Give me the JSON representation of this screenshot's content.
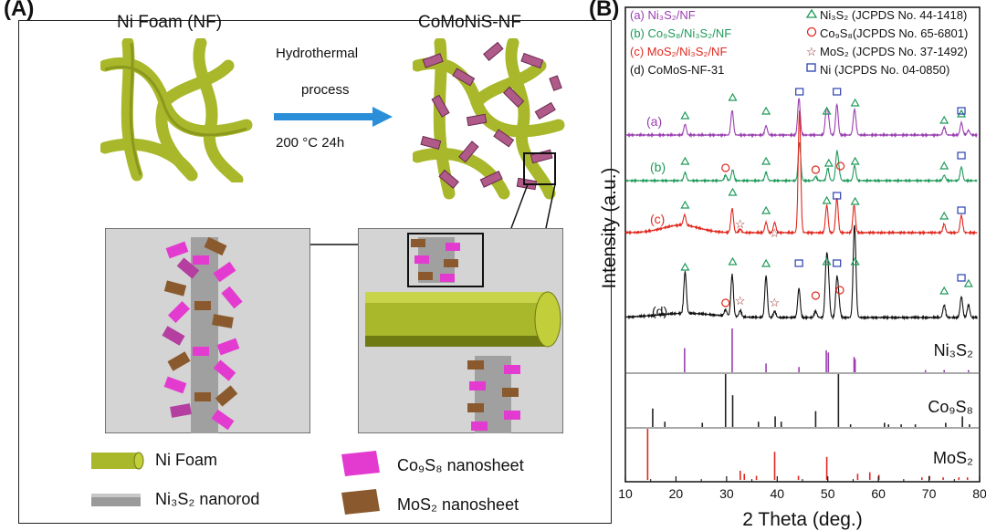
{
  "panelA": {
    "letter": "(A)",
    "left_title": "Ni Foam (NF)",
    "right_title": "CoMoNiS-NF",
    "arrow_line1": "Hydrothermal",
    "arrow_line2": "process",
    "arrow_line3": "200 °C  24h",
    "legend": {
      "ni_foam": "Ni Foam",
      "ni3s2": "Ni₃S₂ nanorod",
      "co9s8": "Co₉S₈ nanosheet",
      "mos2": "MoS₂ nanosheet"
    },
    "colors": {
      "foam": "#a8b82a",
      "co9s8": "#e33bd0",
      "mos2": "#8a5a2e",
      "ni3s2": "#9a9a9a",
      "arrow": "#2a8fd8"
    }
  },
  "panelB": {
    "letter": "(B)",
    "legend_left": [
      "(a) Ni₃S₂/NF",
      "(b) Co₉S₈/Ni₃S₂/NF",
      "(c) MoS₂/Ni₃S₂/NF",
      "(d) CoMoS-NF-31"
    ],
    "legend_right": [
      "Ni₃S₂ (JCPDS No. 44-1418)",
      "Co₉S₈(JCPDS No. 65-6801)",
      "MoS₂ (JCPDS No. 37-1492)",
      "Ni (JCPDS No. 04-0850)"
    ],
    "curve_labels": [
      "(a)",
      "(b)",
      "(c)",
      "(d)"
    ],
    "ref_labels": [
      "Ni₃S₂",
      "Co₉S₈",
      "MoS₂"
    ],
    "series_colors": {
      "a": "#9a3fb0",
      "b": "#1f9a5a",
      "c": "#e0281e",
      "d": "#111111"
    }
  },
  "chart_data": {
    "type": "line",
    "xlabel": "2 Theta (deg.)",
    "ylabel": "Intensity (a.u.)",
    "xlim": [
      10,
      80
    ],
    "xticks": [
      10,
      20,
      30,
      40,
      50,
      60,
      70,
      80
    ],
    "series": [
      {
        "name": "(a) Ni3S2/NF",
        "peaks": [
          [
            21.8,
            0.35
          ],
          [
            31.1,
            0.8
          ],
          [
            37.8,
            0.3
          ],
          [
            44.3,
            1.2
          ],
          [
            49.7,
            0.7
          ],
          [
            50.1,
            0.5
          ],
          [
            51.8,
            1.0
          ],
          [
            55.2,
            0.5
          ],
          [
            55.4,
            0.4
          ],
          [
            73.0,
            0.25
          ],
          [
            76.4,
            0.4
          ],
          [
            77.8,
            0.15
          ]
        ]
      },
      {
        "name": "(b) Co9S8/Ni3S2/NF",
        "peaks": [
          [
            21.8,
            0.3
          ],
          [
            29.8,
            0.2
          ],
          [
            31.2,
            0.4
          ],
          [
            37.8,
            0.3
          ],
          [
            44.4,
            1.4
          ],
          [
            47.6,
            0.15
          ],
          [
            50.0,
            0.45
          ],
          [
            51.8,
            1.0
          ],
          [
            52.2,
            0.3
          ],
          [
            55.3,
            0.55
          ],
          [
            73.0,
            0.2
          ],
          [
            76.4,
            0.5
          ]
        ]
      },
      {
        "name": "(c) MoS2/Ni3S2/NF",
        "peaks": [
          [
            21.7,
            0.3
          ],
          [
            31.1,
            0.7
          ],
          [
            32.7,
            0.1
          ],
          [
            37.8,
            0.3
          ],
          [
            39.5,
            0.3
          ],
          [
            44.4,
            3.5
          ],
          [
            49.8,
            0.8
          ],
          [
            51.8,
            1.0
          ],
          [
            55.2,
            0.8
          ],
          [
            73.0,
            0.25
          ],
          [
            76.4,
            0.5
          ]
        ]
      },
      {
        "name": "(d) CoMoS-NF-31",
        "peaks": [
          [
            21.8,
            1.0
          ],
          [
            29.8,
            0.15
          ],
          [
            31.1,
            1.0
          ],
          [
            32.7,
            0.15
          ],
          [
            37.8,
            1.0
          ],
          [
            39.5,
            0.15
          ],
          [
            44.3,
            0.7
          ],
          [
            47.6,
            0.15
          ],
          [
            49.7,
            1.2
          ],
          [
            50.1,
            0.9
          ],
          [
            51.8,
            0.9
          ],
          [
            52.2,
            0.3
          ],
          [
            55.2,
            1.4
          ],
          [
            55.4,
            1.0
          ],
          [
            73.0,
            0.3
          ],
          [
            76.4,
            0.5
          ],
          [
            77.8,
            0.3
          ]
        ]
      }
    ],
    "references": [
      {
        "name": "Ni3S2",
        "color": "#9a3fb0",
        "lines": [
          [
            21.7,
            0.55
          ],
          [
            31.1,
            1.0
          ],
          [
            37.8,
            0.2
          ],
          [
            44.3,
            0.12
          ],
          [
            49.7,
            0.5
          ],
          [
            50.1,
            0.45
          ],
          [
            55.2,
            0.35
          ],
          [
            55.4,
            0.3
          ],
          [
            69.3,
            0.05
          ],
          [
            73.0,
            0.05
          ],
          [
            77.8,
            0.05
          ]
        ]
      },
      {
        "name": "Co9S8",
        "color": "#222222",
        "lines": [
          [
            15.4,
            0.35
          ],
          [
            17.8,
            0.1
          ],
          [
            25.2,
            0.08
          ],
          [
            29.8,
            1.0
          ],
          [
            31.2,
            0.6
          ],
          [
            36.3,
            0.1
          ],
          [
            39.6,
            0.2
          ],
          [
            40.8,
            0.1
          ],
          [
            47.6,
            0.3
          ],
          [
            52.1,
            1.0
          ],
          [
            54.5,
            0.05
          ],
          [
            61.2,
            0.08
          ],
          [
            62.0,
            0.05
          ],
          [
            64.5,
            0.05
          ],
          [
            67.3,
            0.05
          ],
          [
            73.3,
            0.08
          ],
          [
            76.6,
            0.2
          ],
          [
            78.0,
            0.05
          ]
        ]
      },
      {
        "name": "MoS2",
        "color": "#e0281e",
        "lines": [
          [
            14.4,
            1.0
          ],
          [
            32.7,
            0.18
          ],
          [
            33.5,
            0.12
          ],
          [
            35.9,
            0.08
          ],
          [
            39.5,
            0.55
          ],
          [
            44.2,
            0.08
          ],
          [
            49.8,
            0.45
          ],
          [
            55.9,
            0.12
          ],
          [
            58.3,
            0.15
          ],
          [
            60.1,
            0.1
          ],
          [
            68.6,
            0.05
          ],
          [
            70.1,
            0.08
          ],
          [
            72.8,
            0.05
          ],
          [
            75.9,
            0.05
          ],
          [
            77.6,
            0.05
          ]
        ]
      }
    ]
  }
}
